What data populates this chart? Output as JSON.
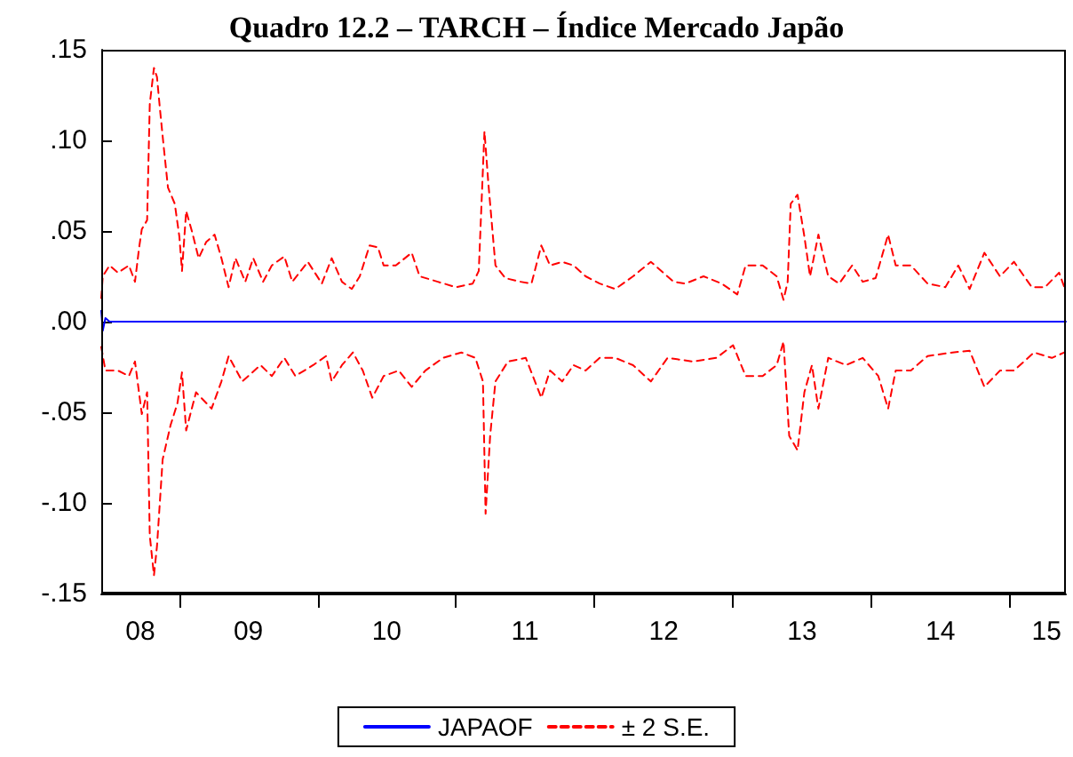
{
  "chart_data": {
    "type": "line",
    "title": "Quadro 12.2 – TARCH – Índice Mercado Japão",
    "xlim": [
      "2008-06-09",
      "2015-05-29"
    ],
    "xticks": [
      {
        "value": "2009-01-01",
        "label": null
      },
      {
        "value": "2010-01-01",
        "label": null
      },
      {
        "value": "2011-01-01",
        "label": null
      },
      {
        "value": "2012-01-01",
        "label": null
      },
      {
        "value": "2013-01-01",
        "label": null
      },
      {
        "value": "2014-01-01",
        "label": null
      },
      {
        "value": "2015-01-01",
        "label": null
      },
      {
        "value": "2008-09-20",
        "label": "08"
      },
      {
        "value": "2009-07-02",
        "label": "09"
      },
      {
        "value": "2010-07-02",
        "label": "10"
      },
      {
        "value": "2011-07-02",
        "label": "11"
      },
      {
        "value": "2012-07-02",
        "label": "12"
      },
      {
        "value": "2013-07-02",
        "label": "13"
      },
      {
        "value": "2014-07-02",
        "label": "14"
      },
      {
        "value": "2015-04-08",
        "label": "15"
      }
    ],
    "ylim": [
      -0.15,
      0.15
    ],
    "yticks": [
      {
        "value": -0.15,
        "label": "-.15"
      },
      {
        "value": -0.1,
        "label": "-.10"
      },
      {
        "value": -0.05,
        "label": "-.05"
      },
      {
        "value": 0,
        "label": ".00"
      },
      {
        "value": 0.05,
        "label": ".05"
      },
      {
        "value": 0.1,
        "label": ".10"
      },
      {
        "value": 0.15,
        "label": ".15"
      }
    ],
    "grid": false,
    "legend": "bottom",
    "marker": "none",
    "series": [
      {
        "name": "JAPAOF",
        "color": "#0000ff",
        "line_style": "solid",
        "x": [
          "2008-06-09",
          "2008-06-13",
          "2008-06-20",
          "2008-07-01",
          "2009-07-02",
          "2010-07-02",
          "2011-07-02",
          "2012-07-02",
          "2013-07-02",
          "2014-07-02",
          "2015-05-29"
        ],
        "values": [
          0.006,
          -0.005,
          0.002,
          0,
          0,
          0,
          0,
          0,
          0,
          0,
          0
        ]
      },
      {
        "name": "± 2 S.E.",
        "color": "#ff0000",
        "line_style": "dashed",
        "x": [
          "2008-06-09",
          "2008-06-13",
          "2008-07-01",
          "2008-07-23",
          "2008-08-21",
          "2008-09-06",
          "2008-09-17",
          "2008-09-24",
          "2008-10-08",
          "2008-10-15",
          "2008-10-26",
          "2008-11-03",
          "2008-11-11",
          "2008-11-21",
          "2008-12-02",
          "2008-12-20",
          "2009-01-01",
          "2009-01-08",
          "2009-01-19",
          "2009-02-03",
          "2009-02-21",
          "2009-03-13",
          "2009-04-04",
          "2009-04-22",
          "2009-05-11",
          "2009-05-29",
          "2009-06-24",
          "2009-07-15",
          "2009-08-10",
          "2009-09-02",
          "2009-10-05",
          "2009-10-26",
          "2009-12-06",
          "2010-01-12",
          "2010-02-07",
          "2010-03-06",
          "2010-04-01",
          "2010-04-22",
          "2010-05-18",
          "2010-06-09",
          "2010-06-24",
          "2010-07-26",
          "2010-09-06",
          "2010-09-27",
          "2010-11-14",
          "2011-01-01",
          "2011-02-14",
          "2011-03-02",
          "2011-03-17",
          "2011-03-27",
          "2011-04-15",
          "2011-05-11",
          "2011-06-20",
          "2011-07-19",
          "2011-08-14",
          "2011-09-06",
          "2011-10-08",
          "2011-11-07",
          "2011-12-09",
          "2012-01-15",
          "2012-02-25",
          "2012-04-12",
          "2012-05-29",
          "2012-07-28",
          "2012-08-28",
          "2012-10-15",
          "2012-12-02",
          "2013-01-12",
          "2013-02-03",
          "2013-03-20",
          "2013-04-26",
          "2013-05-14",
          "2013-05-25",
          "2013-06-02",
          "2013-06-20",
          "2013-07-08",
          "2013-07-23",
          "2013-08-14",
          "2013-09-09",
          "2013-10-08",
          "2013-11-11",
          "2013-12-09",
          "2014-01-12",
          "2014-02-14",
          "2014-03-06",
          "2014-04-15",
          "2014-05-29",
          "2014-07-15",
          "2014-08-18",
          "2014-09-17",
          "2014-10-26",
          "2014-12-06",
          "2015-01-12",
          "2015-02-28",
          "2015-04-04",
          "2015-05-11",
          "2015-05-25"
        ],
        "values": [
          0.013,
          0.025,
          0.031,
          0.027,
          0.031,
          0.022,
          0.041,
          0.051,
          0.056,
          0.12,
          0.14,
          0.135,
          0.117,
          0.096,
          0.074,
          0.065,
          0.047,
          0.028,
          0.061,
          0.05,
          0.035,
          0.044,
          0.048,
          0.035,
          0.019,
          0.035,
          0.022,
          0.035,
          0.022,
          0.031,
          0.036,
          0.022,
          0.033,
          0.021,
          0.035,
          0.022,
          0.018,
          0.025,
          0.042,
          0.041,
          0.031,
          0.031,
          0.038,
          0.025,
          0.022,
          0.019,
          0.021,
          0.028,
          0.105,
          0.077,
          0.031,
          0.024,
          0.022,
          0.021,
          0.042,
          0.031,
          0.033,
          0.031,
          0.025,
          0.021,
          0.018,
          0.025,
          0.033,
          0.022,
          0.021,
          0.025,
          0.021,
          0.015,
          0.031,
          0.031,
          0.025,
          0.012,
          0.022,
          0.065,
          0.07,
          0.047,
          0.025,
          0.048,
          0.025,
          0.021,
          0.031,
          0.022,
          0.024,
          0.048,
          0.031,
          0.031,
          0.021,
          0.019,
          0.031,
          0.018,
          0.038,
          0.025,
          0.033,
          0.019,
          0.019,
          0.027,
          0.019
        ]
      },
      {
        "color": "#ff0000",
        "line_style": "dashed",
        "x": [
          "2008-06-09",
          "2008-06-20",
          "2008-07-23",
          "2008-08-21",
          "2008-09-06",
          "2008-09-24",
          "2008-10-08",
          "2008-10-15",
          "2008-10-26",
          "2008-11-03",
          "2008-11-18",
          "2008-12-09",
          "2008-12-27",
          "2009-01-08",
          "2009-01-19",
          "2009-02-14",
          "2009-03-27",
          "2009-04-22",
          "2009-05-11",
          "2009-06-16",
          "2009-08-03",
          "2009-09-02",
          "2009-10-05",
          "2009-11-03",
          "2009-12-20",
          "2010-01-23",
          "2010-02-07",
          "2010-03-06",
          "2010-04-04",
          "2010-04-30",
          "2010-05-25",
          "2010-06-24",
          "2010-08-03",
          "2010-09-06",
          "2010-10-12",
          "2010-11-28",
          "2011-01-15",
          "2011-02-21",
          "2011-03-13",
          "2011-03-20",
          "2011-04-01",
          "2011-04-15",
          "2011-05-18",
          "2011-07-04",
          "2011-08-14",
          "2011-09-06",
          "2011-10-08",
          "2011-11-07",
          "2011-12-09",
          "2012-01-15",
          "2012-02-25",
          "2012-04-12",
          "2012-05-29",
          "2012-07-12",
          "2012-09-17",
          "2012-11-18",
          "2013-01-01",
          "2013-02-03",
          "2013-03-20",
          "2013-04-26",
          "2013-05-14",
          "2013-05-29",
          "2013-06-20",
          "2013-07-08",
          "2013-07-28",
          "2013-08-14",
          "2013-09-09",
          "2013-10-26",
          "2013-12-09",
          "2014-01-19",
          "2014-02-14",
          "2014-03-06",
          "2014-04-15",
          "2014-05-29",
          "2014-08-03",
          "2014-09-17",
          "2014-10-26",
          "2014-12-06",
          "2015-01-12",
          "2015-03-06",
          "2015-04-22",
          "2015-05-25"
        ],
        "values": [
          -0.014,
          -0.027,
          -0.027,
          -0.03,
          -0.022,
          -0.051,
          -0.039,
          -0.118,
          -0.14,
          -0.124,
          -0.076,
          -0.057,
          -0.045,
          -0.028,
          -0.06,
          -0.039,
          -0.048,
          -0.033,
          -0.019,
          -0.033,
          -0.024,
          -0.03,
          -0.02,
          -0.03,
          -0.024,
          -0.019,
          -0.033,
          -0.024,
          -0.017,
          -0.027,
          -0.042,
          -0.03,
          -0.027,
          -0.036,
          -0.027,
          -0.02,
          -0.017,
          -0.02,
          -0.033,
          -0.106,
          -0.063,
          -0.033,
          -0.022,
          -0.02,
          -0.042,
          -0.027,
          -0.033,
          -0.024,
          -0.027,
          -0.02,
          -0.02,
          -0.024,
          -0.033,
          -0.02,
          -0.022,
          -0.02,
          -0.013,
          -0.03,
          -0.03,
          -0.024,
          -0.011,
          -0.063,
          -0.071,
          -0.039,
          -0.024,
          -0.048,
          -0.02,
          -0.024,
          -0.02,
          -0.03,
          -0.048,
          -0.027,
          -0.027,
          -0.019,
          -0.017,
          -0.016,
          -0.036,
          -0.027,
          -0.027,
          -0.017,
          -0.02,
          -0.017
        ]
      }
    ]
  }
}
